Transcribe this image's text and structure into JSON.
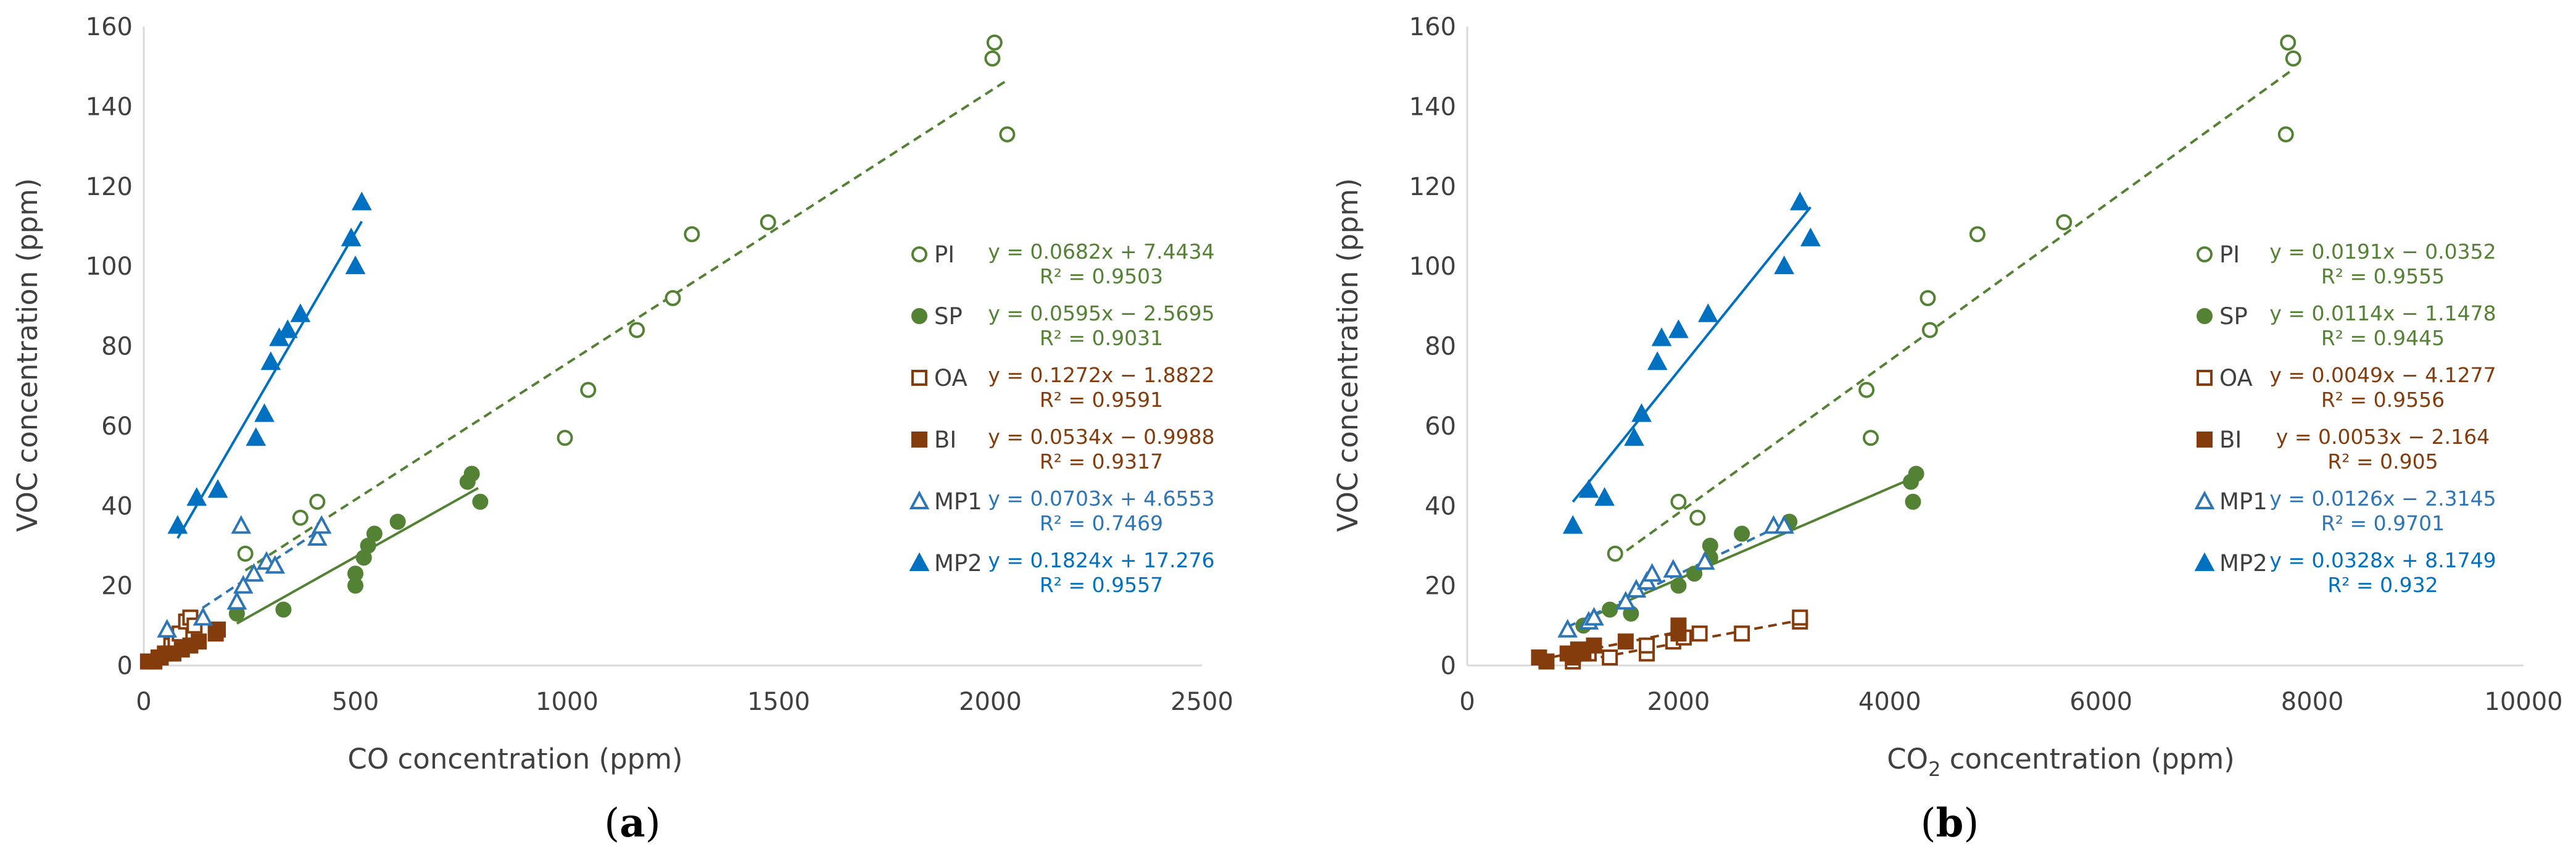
{
  "colors": {
    "PI": "#548235",
    "SP": "#548235",
    "OA": "#843C0C",
    "BI": "#843C0C",
    "MP1": "#2E75B6",
    "MP2": "#0070C0",
    "axis": "#d9d9d9",
    "text": "#404040"
  },
  "chart_data": [
    {
      "type": "scatter",
      "panel_label": "(a)",
      "panel_letter": "a",
      "xlabel": "CO concentration (ppm)",
      "ylabel": "VOC concentration (ppm)",
      "xlim": [
        0,
        2500
      ],
      "ylim": [
        0,
        160
      ],
      "x_ticks": [
        "0",
        "500",
        "1000",
        "1500",
        "2000",
        "2500"
      ],
      "y_ticks": [
        "0",
        "20",
        "40",
        "60",
        "80",
        "100",
        "120",
        "140",
        "160"
      ],
      "series": [
        {
          "name": "PI",
          "marker": "circle-open",
          "line": "dashed",
          "equation": "y = 0.0682x + 7.4434",
          "r2": "R² = 0.9503",
          "slope": 0.0682,
          "intercept": 7.4434,
          "fit_x": [
            240,
            2040
          ],
          "points": [
            [
              240,
              28
            ],
            [
              370,
              37
            ],
            [
              410,
              41
            ],
            [
              995,
              57
            ],
            [
              1050,
              69
            ],
            [
              1165,
              84
            ],
            [
              1250,
              92
            ],
            [
              1295,
              108
            ],
            [
              1475,
              111
            ],
            [
              2005,
              152
            ],
            [
              2010,
              156
            ],
            [
              2040,
              133
            ]
          ]
        },
        {
          "name": "SP",
          "marker": "circle-filled",
          "line": "solid",
          "equation": "y = 0.0595x − 2.5695",
          "r2": "R² = 0.9031",
          "slope": 0.0595,
          "intercept": -2.5695,
          "fit_x": [
            220,
            790
          ],
          "points": [
            [
              220,
              13
            ],
            [
              330,
              14
            ],
            [
              500,
              20
            ],
            [
              500,
              23
            ],
            [
              520,
              27
            ],
            [
              530,
              30
            ],
            [
              545,
              33
            ],
            [
              600,
              36
            ],
            [
              765,
              46
            ],
            [
              775,
              48
            ],
            [
              795,
              41
            ]
          ]
        },
        {
          "name": "OA",
          "marker": "square-open",
          "line": "dashed",
          "equation": "y = 0.1272x − 1.8822",
          "r2": "R² = 0.9591",
          "slope": 0.1272,
          "intercept": -1.8822,
          "fit_x": [
            20,
            120
          ],
          "points": [
            [
              20,
              1
            ],
            [
              35,
              2
            ],
            [
              50,
              3
            ],
            [
              65,
              5
            ],
            [
              75,
              6
            ],
            [
              85,
              8
            ],
            [
              100,
              11
            ],
            [
              110,
              12
            ],
            [
              120,
              10
            ]
          ]
        },
        {
          "name": "BI",
          "marker": "square-filled",
          "line": "dashed",
          "equation": "y = 0.0534x − 0.9988",
          "r2": "R² = 0.9317",
          "slope": 0.0534,
          "intercept": -0.9988,
          "fit_x": [
            10,
            180
          ],
          "points": [
            [
              10,
              1
            ],
            [
              25,
              1
            ],
            [
              40,
              2
            ],
            [
              55,
              3
            ],
            [
              70,
              3
            ],
            [
              90,
              4
            ],
            [
              110,
              5
            ],
            [
              130,
              6
            ],
            [
              170,
              8
            ],
            [
              175,
              9
            ]
          ]
        },
        {
          "name": "MP1",
          "marker": "triangle-open",
          "line": "dashed",
          "equation": "y = 0.0703x + 4.6553",
          "r2": "R² = 0.7469",
          "slope": 0.0703,
          "intercept": 4.6553,
          "fit_x": [
            55,
            420
          ],
          "points": [
            [
              55,
              9
            ],
            [
              140,
              12
            ],
            [
              220,
              16
            ],
            [
              235,
              20
            ],
            [
              230,
              35
            ],
            [
              260,
              23
            ],
            [
              290,
              26
            ],
            [
              310,
              25
            ],
            [
              410,
              32
            ],
            [
              420,
              35
            ]
          ]
        },
        {
          "name": "MP2",
          "marker": "triangle-filled",
          "line": "solid",
          "equation": "y = 0.1824x + 17.276",
          "r2": "R² = 0.9557",
          "slope": 0.1824,
          "intercept": 17.276,
          "fit_x": [
            80,
            515
          ],
          "points": [
            [
              80,
              35
            ],
            [
              125,
              42
            ],
            [
              175,
              44
            ],
            [
              265,
              57
            ],
            [
              285,
              63
            ],
            [
              300,
              76
            ],
            [
              320,
              82
            ],
            [
              340,
              84
            ],
            [
              370,
              88
            ],
            [
              490,
              107
            ],
            [
              500,
              100
            ],
            [
              515,
              116
            ]
          ]
        }
      ]
    },
    {
      "type": "scatter",
      "panel_label": "(b)",
      "panel_letter": "b",
      "xlabel_main": "CO",
      "xlabel_sub": "2",
      "xlabel_rest": " concentration (ppm)",
      "ylabel": "VOC concentration (ppm)",
      "xlim": [
        0,
        10000
      ],
      "ylim": [
        0,
        160
      ],
      "x_ticks": [
        "0",
        "2000",
        "4000",
        "6000",
        "8000",
        "10000"
      ],
      "y_ticks": [
        "0",
        "20",
        "40",
        "60",
        "80",
        "100",
        "120",
        "140",
        "160"
      ],
      "series": [
        {
          "name": "PI",
          "marker": "circle-open",
          "line": "dashed",
          "equation": "y = 0.0191x − 0.0352",
          "r2": "R² = 0.9555",
          "slope": 0.0191,
          "intercept": -0.0352,
          "fit_x": [
            1400,
            7820
          ],
          "points": [
            [
              1400,
              28
            ],
            [
              2000,
              41
            ],
            [
              2180,
              37
            ],
            [
              3780,
              69
            ],
            [
              3820,
              57
            ],
            [
              4360,
              92
            ],
            [
              4380,
              84
            ],
            [
              4830,
              108
            ],
            [
              5650,
              111
            ],
            [
              7750,
              133
            ],
            [
              7770,
              156
            ],
            [
              7820,
              152
            ]
          ]
        },
        {
          "name": "SP",
          "marker": "circle-filled",
          "line": "solid",
          "equation": "y = 0.0114x − 1.1478",
          "r2": "R² = 0.9445",
          "slope": 0.0114,
          "intercept": -1.1478,
          "fit_x": [
            1100,
            4260
          ],
          "points": [
            [
              1100,
              10
            ],
            [
              1350,
              14
            ],
            [
              1550,
              13
            ],
            [
              2000,
              20
            ],
            [
              2150,
              23
            ],
            [
              2300,
              27
            ],
            [
              2300,
              30
            ],
            [
              2600,
              33
            ],
            [
              3050,
              36
            ],
            [
              4200,
              46
            ],
            [
              4220,
              41
            ],
            [
              4250,
              48
            ]
          ]
        },
        {
          "name": "OA",
          "marker": "square-open",
          "line": "dashed",
          "equation": "y = 0.0049x − 4.1277",
          "r2": "R² = 0.9556",
          "slope": 0.0049,
          "intercept": -4.1277,
          "fit_x": [
            1000,
            3150
          ],
          "points": [
            [
              1000,
              1
            ],
            [
              1150,
              3
            ],
            [
              1350,
              2
            ],
            [
              1700,
              3
            ],
            [
              1700,
              5
            ],
            [
              1950,
              6
            ],
            [
              2050,
              7
            ],
            [
              2200,
              8
            ],
            [
              2600,
              8
            ],
            [
              3150,
              11
            ],
            [
              3150,
              12
            ]
          ]
        },
        {
          "name": "BI",
          "marker": "square-filled",
          "line": "dashed",
          "equation": "y = 0.0053x − 2.164",
          "r2": "R² = 0.905",
          "slope": 0.0053,
          "intercept": -2.164,
          "fit_x": [
            680,
            2050
          ],
          "points": [
            [
              680,
              2
            ],
            [
              750,
              1
            ],
            [
              950,
              3
            ],
            [
              1000,
              2
            ],
            [
              1050,
              4
            ],
            [
              1100,
              3
            ],
            [
              1200,
              5
            ],
            [
              1500,
              6
            ],
            [
              2000,
              8
            ],
            [
              2000,
              10
            ]
          ]
        },
        {
          "name": "MP1",
          "marker": "triangle-open",
          "line": "dashed",
          "equation": "y = 0.0126x − 2.3145",
          "r2": "R² = 0.9701",
          "slope": 0.0126,
          "intercept": -2.3145,
          "fit_x": [
            950,
            3050
          ],
          "points": [
            [
              950,
              9
            ],
            [
              1150,
              11
            ],
            [
              1200,
              12
            ],
            [
              1500,
              16
            ],
            [
              1600,
              19
            ],
            [
              1700,
              21
            ],
            [
              1750,
              23
            ],
            [
              1950,
              24
            ],
            [
              2250,
              26
            ],
            [
              2900,
              35
            ],
            [
              3000,
              35
            ]
          ]
        },
        {
          "name": "MP2",
          "marker": "triangle-filled",
          "line": "solid",
          "equation": "y = 0.0328x + 8.1749",
          "r2": "R² = 0.932",
          "slope": 0.0328,
          "intercept": 8.1749,
          "fit_x": [
            1000,
            3250
          ],
          "points": [
            [
              1000,
              35
            ],
            [
              1150,
              44
            ],
            [
              1300,
              42
            ],
            [
              1580,
              57
            ],
            [
              1650,
              63
            ],
            [
              1800,
              76
            ],
            [
              1840,
              82
            ],
            [
              2000,
              84
            ],
            [
              2280,
              88
            ],
            [
              3000,
              100
            ],
            [
              3150,
              116
            ],
            [
              3250,
              107
            ]
          ]
        }
      ]
    }
  ]
}
